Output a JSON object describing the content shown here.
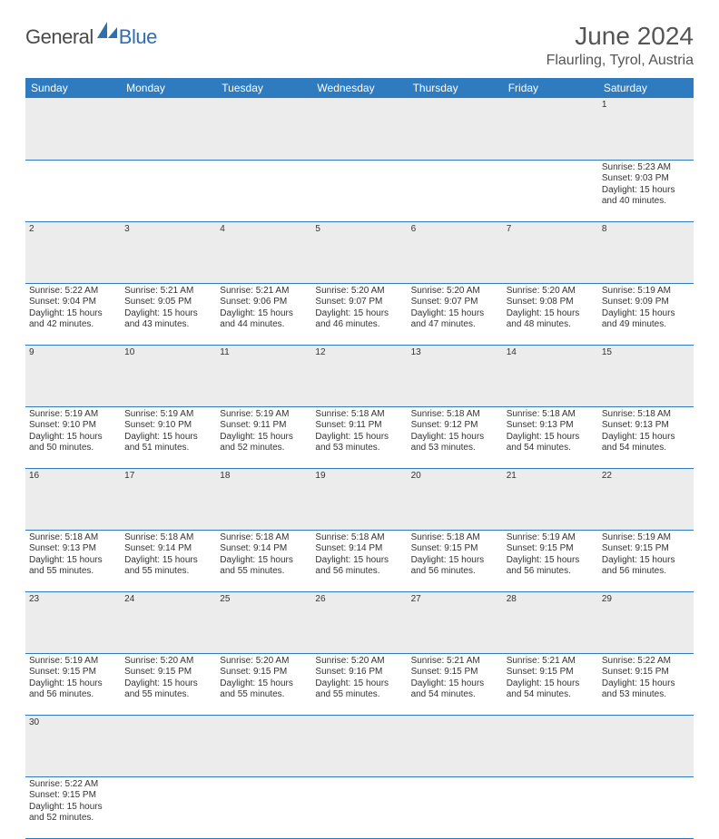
{
  "brand": {
    "text1": "General",
    "text2": "Blue",
    "sail_color": "#2f6fb0"
  },
  "header": {
    "month_title": "June 2024",
    "location": "Flaurling, Tyrol, Austria",
    "title_color": "#555555",
    "title_fontsize": 28,
    "location_fontsize": 16
  },
  "calendar": {
    "header_bg": "#2f7bbf",
    "header_text_color": "#ffffff",
    "daynum_bg": "#ececec",
    "row_border_color": "#2f7bbf",
    "day_headers": [
      "Sunday",
      "Monday",
      "Tuesday",
      "Wednesday",
      "Thursday",
      "Friday",
      "Saturday"
    ],
    "cell_fontsize": 10,
    "weeks": [
      [
        null,
        null,
        null,
        null,
        null,
        null,
        {
          "n": "1",
          "sunrise": "5:23 AM",
          "sunset": "9:03 PM",
          "dl": "15 hours and 40 minutes."
        }
      ],
      [
        {
          "n": "2",
          "sunrise": "5:22 AM",
          "sunset": "9:04 PM",
          "dl": "15 hours and 42 minutes."
        },
        {
          "n": "3",
          "sunrise": "5:21 AM",
          "sunset": "9:05 PM",
          "dl": "15 hours and 43 minutes."
        },
        {
          "n": "4",
          "sunrise": "5:21 AM",
          "sunset": "9:06 PM",
          "dl": "15 hours and 44 minutes."
        },
        {
          "n": "5",
          "sunrise": "5:20 AM",
          "sunset": "9:07 PM",
          "dl": "15 hours and 46 minutes."
        },
        {
          "n": "6",
          "sunrise": "5:20 AM",
          "sunset": "9:07 PM",
          "dl": "15 hours and 47 minutes."
        },
        {
          "n": "7",
          "sunrise": "5:20 AM",
          "sunset": "9:08 PM",
          "dl": "15 hours and 48 minutes."
        },
        {
          "n": "8",
          "sunrise": "5:19 AM",
          "sunset": "9:09 PM",
          "dl": "15 hours and 49 minutes."
        }
      ],
      [
        {
          "n": "9",
          "sunrise": "5:19 AM",
          "sunset": "9:10 PM",
          "dl": "15 hours and 50 minutes."
        },
        {
          "n": "10",
          "sunrise": "5:19 AM",
          "sunset": "9:10 PM",
          "dl": "15 hours and 51 minutes."
        },
        {
          "n": "11",
          "sunrise": "5:19 AM",
          "sunset": "9:11 PM",
          "dl": "15 hours and 52 minutes."
        },
        {
          "n": "12",
          "sunrise": "5:18 AM",
          "sunset": "9:11 PM",
          "dl": "15 hours and 53 minutes."
        },
        {
          "n": "13",
          "sunrise": "5:18 AM",
          "sunset": "9:12 PM",
          "dl": "15 hours and 53 minutes."
        },
        {
          "n": "14",
          "sunrise": "5:18 AM",
          "sunset": "9:13 PM",
          "dl": "15 hours and 54 minutes."
        },
        {
          "n": "15",
          "sunrise": "5:18 AM",
          "sunset": "9:13 PM",
          "dl": "15 hours and 54 minutes."
        }
      ],
      [
        {
          "n": "16",
          "sunrise": "5:18 AM",
          "sunset": "9:13 PM",
          "dl": "15 hours and 55 minutes."
        },
        {
          "n": "17",
          "sunrise": "5:18 AM",
          "sunset": "9:14 PM",
          "dl": "15 hours and 55 minutes."
        },
        {
          "n": "18",
          "sunrise": "5:18 AM",
          "sunset": "9:14 PM",
          "dl": "15 hours and 55 minutes."
        },
        {
          "n": "19",
          "sunrise": "5:18 AM",
          "sunset": "9:14 PM",
          "dl": "15 hours and 56 minutes."
        },
        {
          "n": "20",
          "sunrise": "5:18 AM",
          "sunset": "9:15 PM",
          "dl": "15 hours and 56 minutes."
        },
        {
          "n": "21",
          "sunrise": "5:19 AM",
          "sunset": "9:15 PM",
          "dl": "15 hours and 56 minutes."
        },
        {
          "n": "22",
          "sunrise": "5:19 AM",
          "sunset": "9:15 PM",
          "dl": "15 hours and 56 minutes."
        }
      ],
      [
        {
          "n": "23",
          "sunrise": "5:19 AM",
          "sunset": "9:15 PM",
          "dl": "15 hours and 56 minutes."
        },
        {
          "n": "24",
          "sunrise": "5:20 AM",
          "sunset": "9:15 PM",
          "dl": "15 hours and 55 minutes."
        },
        {
          "n": "25",
          "sunrise": "5:20 AM",
          "sunset": "9:15 PM",
          "dl": "15 hours and 55 minutes."
        },
        {
          "n": "26",
          "sunrise": "5:20 AM",
          "sunset": "9:16 PM",
          "dl": "15 hours and 55 minutes."
        },
        {
          "n": "27",
          "sunrise": "5:21 AM",
          "sunset": "9:15 PM",
          "dl": "15 hours and 54 minutes."
        },
        {
          "n": "28",
          "sunrise": "5:21 AM",
          "sunset": "9:15 PM",
          "dl": "15 hours and 54 minutes."
        },
        {
          "n": "29",
          "sunrise": "5:22 AM",
          "sunset": "9:15 PM",
          "dl": "15 hours and 53 minutes."
        }
      ],
      [
        {
          "n": "30",
          "sunrise": "5:22 AM",
          "sunset": "9:15 PM",
          "dl": "15 hours and 52 minutes."
        },
        null,
        null,
        null,
        null,
        null,
        null
      ]
    ],
    "labels": {
      "sunrise": "Sunrise:",
      "sunset": "Sunset:",
      "daylight": "Daylight:"
    }
  }
}
